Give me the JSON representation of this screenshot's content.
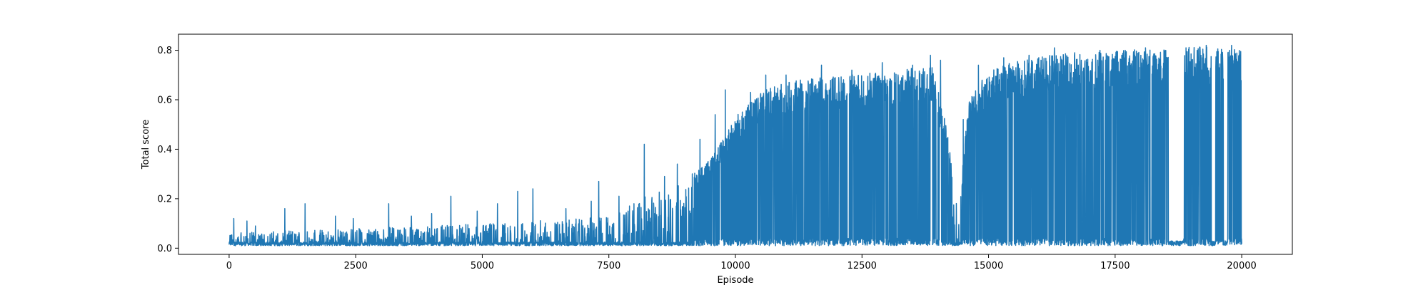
{
  "chart_data": {
    "type": "line",
    "title": "",
    "xlabel": "Episode",
    "ylabel": "Total score",
    "xlim": [
      -1000,
      21000
    ],
    "ylim": [
      -0.025,
      0.865
    ],
    "x_ticks": [
      0,
      2500,
      5000,
      7500,
      10000,
      12500,
      15000,
      17500,
      20000
    ],
    "y_ticks": [
      0.0,
      0.2,
      0.4,
      0.6,
      0.8
    ],
    "x_tick_labels": [
      "0",
      "2500",
      "5000",
      "7500",
      "10000",
      "12500",
      "15000",
      "17500",
      "20000"
    ],
    "y_tick_labels": [
      "0.0",
      "0.2",
      "0.4",
      "0.6",
      "0.8"
    ],
    "grid": false,
    "series": [
      {
        "name": "Total score",
        "color": "#1f77b4",
        "episodes": 20000,
        "baseline": 0.01,
        "envelope_x": [
          0,
          1000,
          2500,
          4000,
          5000,
          6000,
          7000,
          7500,
          8000,
          8500,
          9000,
          9500,
          9800,
          10000,
          10500,
          11000,
          11800,
          12500,
          13200,
          13900,
          14200,
          14400,
          14600,
          15000,
          15500,
          16000,
          16500,
          17000,
          17500,
          18000,
          18500,
          19000,
          19500,
          20000
        ],
        "envelope_high": [
          0.05,
          0.06,
          0.07,
          0.08,
          0.09,
          0.1,
          0.11,
          0.12,
          0.18,
          0.22,
          0.27,
          0.35,
          0.45,
          0.52,
          0.62,
          0.66,
          0.68,
          0.69,
          0.71,
          0.72,
          0.45,
          0.12,
          0.6,
          0.7,
          0.74,
          0.76,
          0.77,
          0.78,
          0.78,
          0.79,
          0.79,
          0.8,
          0.8,
          0.81
        ],
        "spike_peaks": [
          [
            90,
            0.12
          ],
          [
            350,
            0.11
          ],
          [
            520,
            0.09
          ],
          [
            1100,
            0.16
          ],
          [
            1500,
            0.18
          ],
          [
            2100,
            0.13
          ],
          [
            2450,
            0.12
          ],
          [
            3150,
            0.18
          ],
          [
            3600,
            0.13
          ],
          [
            4000,
            0.14
          ],
          [
            4380,
            0.21
          ],
          [
            4900,
            0.15
          ],
          [
            5300,
            0.18
          ],
          [
            5700,
            0.23
          ],
          [
            6000,
            0.24
          ],
          [
            6650,
            0.16
          ],
          [
            7150,
            0.19
          ],
          [
            7300,
            0.27
          ],
          [
            7700,
            0.21
          ],
          [
            8200,
            0.42
          ],
          [
            8600,
            0.29
          ],
          [
            8850,
            0.34
          ],
          [
            9300,
            0.44
          ],
          [
            9600,
            0.54
          ],
          [
            9800,
            0.64
          ],
          [
            10300,
            0.63
          ],
          [
            10600,
            0.7
          ],
          [
            11000,
            0.7
          ],
          [
            11700,
            0.74
          ],
          [
            12300,
            0.72
          ],
          [
            12900,
            0.75
          ],
          [
            13500,
            0.74
          ],
          [
            13850,
            0.78
          ],
          [
            14050,
            0.76
          ],
          [
            14500,
            0.52
          ],
          [
            14800,
            0.74
          ],
          [
            15300,
            0.77
          ],
          [
            15800,
            0.78
          ],
          [
            16300,
            0.81
          ],
          [
            16700,
            0.79
          ],
          [
            17200,
            0.8
          ],
          [
            17700,
            0.8
          ],
          [
            18100,
            0.81
          ],
          [
            18500,
            0.8
          ],
          [
            18900,
            0.81
          ],
          [
            19300,
            0.82
          ],
          [
            19800,
            0.82
          ]
        ],
        "low_run_ranges": [
          [
            18550,
            18850
          ],
          [
            19400,
            19480
          ],
          [
            19650,
            19720
          ]
        ]
      }
    ]
  }
}
